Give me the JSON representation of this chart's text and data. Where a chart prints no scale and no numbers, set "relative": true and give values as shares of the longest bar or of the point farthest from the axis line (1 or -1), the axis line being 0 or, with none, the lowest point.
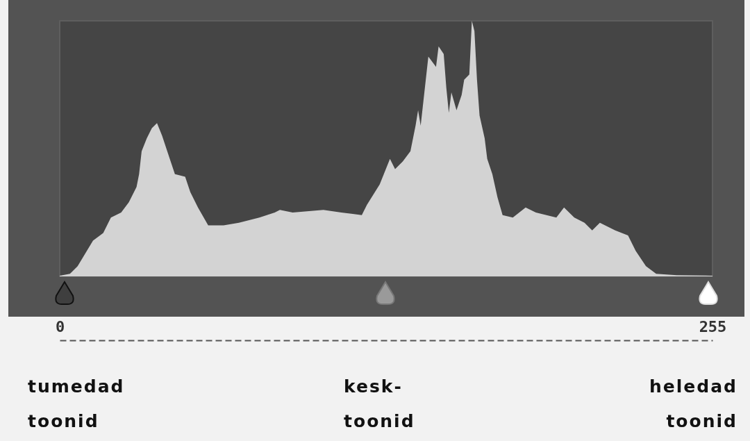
{
  "chart_data": {
    "type": "area",
    "relative": true,
    "color": "#d3d3d3",
    "x": [
      0,
      4,
      7,
      13,
      17,
      20,
      24,
      27,
      30,
      31,
      32,
      34,
      36,
      38,
      40,
      43,
      45,
      49,
      51,
      54,
      58,
      64,
      70,
      78,
      84,
      86,
      91,
      103,
      110,
      118,
      120,
      125,
      129,
      131,
      134,
      137,
      139,
      140,
      141,
      144,
      147,
      148,
      150,
      151,
      152,
      153,
      155,
      157,
      158,
      160,
      161,
      162,
      163,
      164,
      166,
      167,
      169,
      171,
      173,
      177,
      182,
      186,
      194,
      197,
      201,
      205,
      208,
      211,
      217,
      222,
      225,
      229,
      233,
      241,
      255
    ],
    "values": [
      0.003,
      0.01,
      0.04,
      0.14,
      0.17,
      0.23,
      0.25,
      0.29,
      0.35,
      0.4,
      0.49,
      0.54,
      0.58,
      0.6,
      0.55,
      0.46,
      0.4,
      0.39,
      0.33,
      0.27,
      0.2,
      0.2,
      0.21,
      0.23,
      0.25,
      0.26,
      0.25,
      0.26,
      0.25,
      0.24,
      0.28,
      0.36,
      0.46,
      0.42,
      0.45,
      0.49,
      0.59,
      0.65,
      0.59,
      0.86,
      0.82,
      0.9,
      0.87,
      0.74,
      0.64,
      0.72,
      0.65,
      0.71,
      0.77,
      0.79,
      1,
      0.96,
      0.77,
      0.63,
      0.54,
      0.46,
      0.4,
      0.31,
      0.24,
      0.23,
      0.27,
      0.25,
      0.23,
      0.27,
      0.23,
      0.21,
      0.18,
      0.21,
      0.18,
      0.16,
      0.1,
      0.04,
      0.01,
      0.005,
      0.003
    ],
    "xlim": [
      0,
      255
    ],
    "xticks": [
      0,
      255
    ],
    "tick_labels": "x",
    "annotations": [
      "tumedad\ntoonid",
      "kesk-\ntoonid",
      "heledad\ntoonid"
    ]
  }
}
